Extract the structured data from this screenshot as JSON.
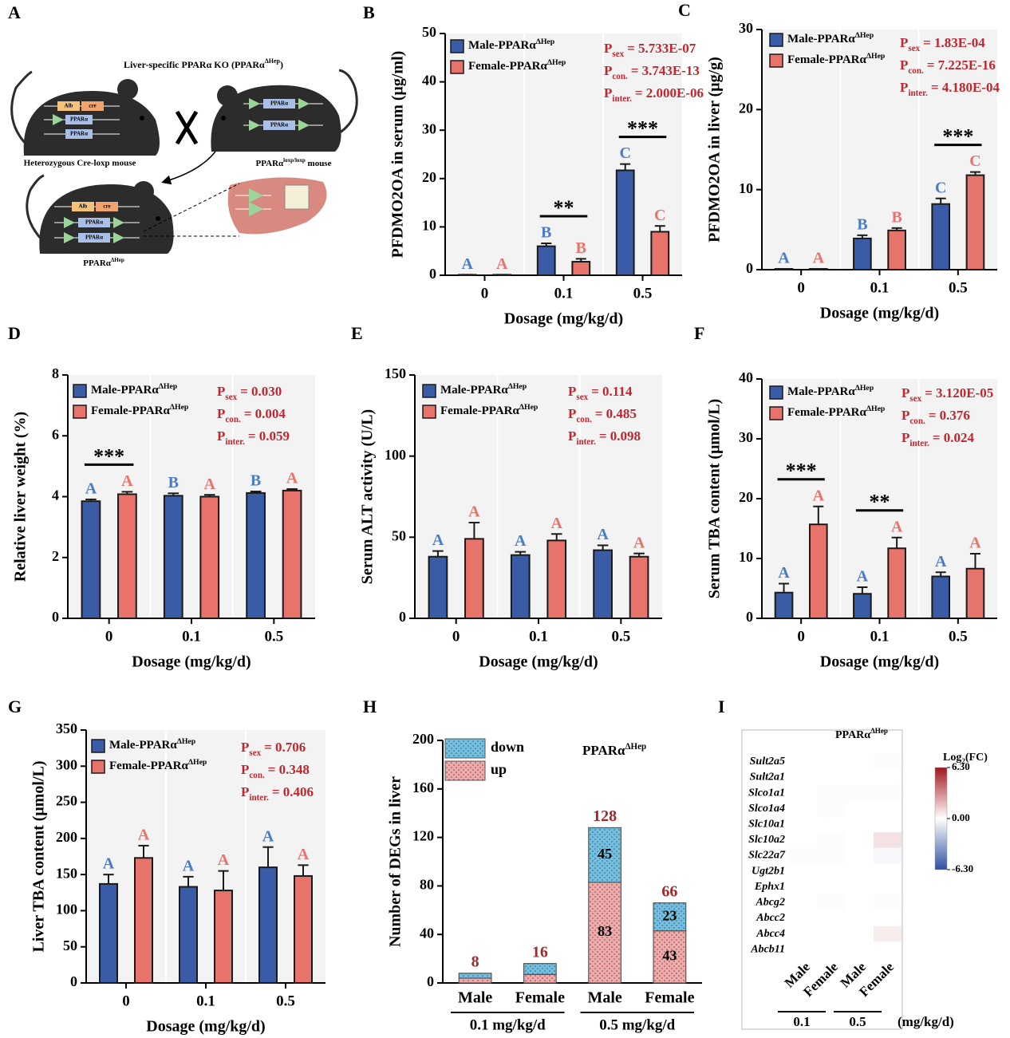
{
  "diagram": {
    "panel_label": "A",
    "title": "Liver-specific PPARα KO (PPARα",
    "title_sup": "ΔHep",
    "title_end": ")",
    "mouse1": "Heterozygous Cre-loxp mouse",
    "mouse2": "PPARα",
    "mouse2_sup": "loxp/loxp",
    "mouse2_end": " mouse",
    "mouse3": "PPARα",
    "mouse3_sup": "ΔHep",
    "genes": {
      "alb": "Alb",
      "cre": "cre",
      "loxp": "loxp",
      "ppara": "PPARα"
    }
  },
  "chart_data": [
    {
      "type": "bar",
      "panel_label": "B",
      "ylabel": "PFDMO2OA in serum (μg/ml)",
      "xlabel": "Dosage (mg/kg/d)",
      "categories": [
        "0",
        "0.1",
        "0.5"
      ],
      "series": [
        {
          "name": "Male-PPARα",
          "name_sup": "ΔHep",
          "color": "#3a5ca6",
          "letter_color": "#4a7cc6",
          "values": [
            0.1,
            6,
            21.7
          ],
          "errors": [
            0,
            0.6,
            1.3
          ],
          "letters": [
            "A",
            "B",
            "C"
          ]
        },
        {
          "name": "Female-PPARα",
          "name_sup": "ΔHep",
          "color": "#e7736b",
          "letter_color": "#e8736b",
          "values": [
            0.1,
            2.8,
            9
          ],
          "errors": [
            0,
            0.6,
            1.2
          ],
          "letters": [
            "A",
            "B",
            "C"
          ]
        }
      ],
      "p_values": [
        {
          "symbol": "P",
          "sub": "sex",
          "text": "= 5.733E-07"
        },
        {
          "symbol": "P",
          "sub": "con.",
          "text": "= 3.743E-13"
        },
        {
          "symbol": "P",
          "sub": "inter.",
          "text": "= 2.000E-06"
        }
      ],
      "p_color": "#c0262d",
      "significance": [
        null,
        "**",
        "***"
      ],
      "ylim": [
        0,
        50
      ],
      "yticks": [
        0,
        10,
        20,
        30,
        40,
        50
      ]
    },
    {
      "type": "bar",
      "panel_label": "C",
      "ylabel": "PFDMO2OA in liver (μg/g)",
      "xlabel": "Dosage (mg/kg/d)",
      "categories": [
        "0",
        "0.1",
        "0.5"
      ],
      "series": [
        {
          "name": "Male-PPARα",
          "name_sup": "ΔHep",
          "color": "#3a5ca6",
          "letter_color": "#4a7cc6",
          "values": [
            0.1,
            3.9,
            8.2
          ],
          "errors": [
            0,
            0.4,
            0.7
          ],
          "letters": [
            "A",
            "B",
            "C"
          ]
        },
        {
          "name": "Female-PPARα",
          "name_sup": "ΔHep",
          "color": "#e7736b",
          "letter_color": "#e8736b",
          "values": [
            0.1,
            4.9,
            11.8
          ],
          "errors": [
            0,
            0.3,
            0.4
          ],
          "letters": [
            "A",
            "B",
            "C"
          ]
        }
      ],
      "p_values": [
        {
          "symbol": "P",
          "sub": "sex",
          "text": "= 1.83E-04"
        },
        {
          "symbol": "P",
          "sub": "con.",
          "text": "= 7.225E-16"
        },
        {
          "symbol": "P",
          "sub": "inter.",
          "text": "= 4.180E-04"
        }
      ],
      "p_color": "#c0262d",
      "significance": [
        null,
        null,
        "***"
      ],
      "ylim": [
        0,
        30
      ],
      "yticks": [
        0,
        10,
        20,
        30
      ]
    },
    {
      "type": "bar",
      "panel_label": "D",
      "ylabel": "Relative liver weight (%)",
      "xlabel": "Dosage (mg/kg/d)",
      "categories": [
        "0",
        "0.1",
        "0.5"
      ],
      "series": [
        {
          "name": "Male-PPARα",
          "name_sup": "ΔHep",
          "color": "#3a5ca6",
          "letter_color": "#4a7cc6",
          "values": [
            3.85,
            4.03,
            4.12
          ],
          "errors": [
            0.06,
            0.08,
            0.05
          ],
          "letters": [
            "A",
            "B",
            "B"
          ]
        },
        {
          "name": "Female-PPARα",
          "name_sup": "ΔHep",
          "color": "#e7736b",
          "letter_color": "#e8736b",
          "values": [
            4.08,
            4.0,
            4.2
          ],
          "errors": [
            0.08,
            0.06,
            0.05
          ],
          "letters": [
            "A",
            "A",
            "A"
          ]
        }
      ],
      "p_values": [
        {
          "symbol": "P",
          "sub": "sex",
          "text": "= 0.030"
        },
        {
          "symbol": "P",
          "sub": "con.",
          "text": "= 0.004"
        },
        {
          "symbol": "P",
          "sub": "inter.",
          "text": "= 0.059"
        }
      ],
      "p_color": "#c0262d",
      "significance": [
        "***",
        null,
        null
      ],
      "ylim": [
        0,
        8
      ],
      "yticks": [
        0,
        2,
        4,
        6,
        8
      ]
    },
    {
      "type": "bar",
      "panel_label": "E",
      "ylabel": "Serum ALT activity (U/L)",
      "xlabel": "Dosage (mg/kg/d)",
      "categories": [
        "0",
        "0.1",
        "0.5"
      ],
      "series": [
        {
          "name": "Male-PPARα",
          "name_sup": "ΔHep",
          "color": "#3a5ca6",
          "letter_color": "#4a7cc6",
          "values": [
            38,
            39,
            42
          ],
          "errors": [
            3.5,
            2,
            3
          ],
          "letters": [
            "A",
            "A",
            "A"
          ]
        },
        {
          "name": "Female-PPARα",
          "name_sup": "ΔHep",
          "color": "#e7736b",
          "letter_color": "#e8736b",
          "values": [
            49,
            48,
            38
          ],
          "errors": [
            10,
            4,
            2
          ],
          "letters": [
            "A",
            "A",
            "A"
          ]
        }
      ],
      "p_values": [
        {
          "symbol": "P",
          "sub": "sex",
          "text": "= 0.114"
        },
        {
          "symbol": "P",
          "sub": "con.",
          "text": "= 0.485"
        },
        {
          "symbol": "P",
          "sub": "inter.",
          "text": "= 0.098"
        }
      ],
      "p_color": "#c0262d",
      "significance": [
        null,
        null,
        null
      ],
      "ylim": [
        0,
        150
      ],
      "yticks": [
        0,
        50,
        100,
        150
      ]
    },
    {
      "type": "bar",
      "panel_label": "F",
      "ylabel": "Serum TBA content (μmol/L)",
      "xlabel": "Dosage (mg/kg/d)",
      "categories": [
        "0",
        "0.1",
        "0.5"
      ],
      "series": [
        {
          "name": "Male-PPARα",
          "name_sup": "ΔHep",
          "color": "#3a5ca6",
          "letter_color": "#4a7cc6",
          "values": [
            4.3,
            4.1,
            7.0
          ],
          "errors": [
            1.5,
            1.1,
            0.7
          ],
          "letters": [
            "A",
            "A",
            "A"
          ]
        },
        {
          "name": "Female-PPARα",
          "name_sup": "ΔHep",
          "color": "#e7736b",
          "letter_color": "#e8736b",
          "values": [
            15.7,
            11.7,
            8.3
          ],
          "errors": [
            3,
            1.8,
            2.5
          ],
          "letters": [
            "A",
            "A",
            "A"
          ]
        }
      ],
      "p_values": [
        {
          "symbol": "P",
          "sub": "sex",
          "text": "= 3.120E-05"
        },
        {
          "symbol": "P",
          "sub": "con.",
          "text": "= 0.376"
        },
        {
          "symbol": "P",
          "sub": "inter.",
          "text": "= 0.024"
        }
      ],
      "p_color": "#c0262d",
      "significance": [
        "***",
        "**",
        null
      ],
      "ylim": [
        0,
        40
      ],
      "yticks": [
        0,
        10,
        20,
        30,
        40
      ]
    },
    {
      "type": "bar",
      "panel_label": "G",
      "ylabel": "Liver TBA content (μmol/L)",
      "xlabel": "Dosage (mg/kg/d)",
      "categories": [
        "0",
        "0.1",
        "0.5"
      ],
      "series": [
        {
          "name": "Male-PPARα",
          "name_sup": "ΔHep",
          "color": "#3a5ca6",
          "letter_color": "#4a7cc6",
          "values": [
            137,
            133,
            160
          ],
          "errors": [
            13,
            14,
            28
          ],
          "letters": [
            "A",
            "A",
            "A"
          ]
        },
        {
          "name": "Female-PPARα",
          "name_sup": "ΔHep",
          "color": "#e7736b",
          "letter_color": "#e8736b",
          "values": [
            173,
            128,
            148
          ],
          "errors": [
            17,
            27,
            15
          ],
          "letters": [
            "A",
            "A",
            "A"
          ]
        }
      ],
      "p_values": [
        {
          "symbol": "P",
          "sub": "sex",
          "text": "= 0.706"
        },
        {
          "symbol": "P",
          "sub": "con.",
          "text": "= 0.348"
        },
        {
          "symbol": "P",
          "sub": "inter.",
          "text": "= 0.406"
        }
      ],
      "p_color": "#c0262d",
      "significance": [
        null,
        null,
        null
      ],
      "ylim": [
        0,
        350
      ],
      "yticks": [
        0,
        50,
        100,
        150,
        200,
        250,
        300,
        350
      ]
    },
    {
      "type": "stacked_bar",
      "panel_label": "H",
      "ylabel": "Number of DEGs in liver",
      "categories": [
        "Male",
        "Female",
        "Male",
        "Female"
      ],
      "groups": [
        "0.1 mg/kg/d",
        "0.5 mg/kg/d"
      ],
      "annotation": "PPARα",
      "annotation_sup": "ΔHep",
      "series": [
        {
          "name": "down",
          "color": "#6fc0e2",
          "values": [
            4,
            9,
            45,
            23
          ]
        },
        {
          "name": "up",
          "color": "#f3a9a9",
          "values": [
            4,
            7,
            83,
            43
          ]
        }
      ],
      "totals": [
        8,
        16,
        128,
        66
      ],
      "totals_color": "#9c2a2a",
      "ylim": [
        0,
        200
      ],
      "yticks": [
        0,
        40,
        80,
        120,
        160,
        200
      ]
    },
    {
      "type": "heatmap",
      "panel_label": "I",
      "title": "PPARα",
      "title_sup": "ΔHep",
      "rows": [
        "Sult2a5",
        "Sult2a1",
        "Slco1a1",
        "Slco1a4",
        "Slc10a1",
        "Slc10a2",
        "Slc22a7",
        "Ugt2b1",
        "Ephx1",
        "Abcg2",
        "Abcc2",
        "Abcc4",
        "Abcb11"
      ],
      "columns": [
        "Male",
        "Female",
        "Male",
        "Female"
      ],
      "column_groups": [
        "0.1",
        "0.5"
      ],
      "unit": "(mg/kg/d)",
      "values": [
        [
          0,
          0,
          0,
          0.1
        ],
        [
          0,
          0,
          0,
          0
        ],
        [
          0,
          0.1,
          0.1,
          0.1
        ],
        [
          0,
          0.1,
          0,
          0
        ],
        [
          0,
          0,
          0,
          0
        ],
        [
          0,
          0.1,
          0,
          0.8
        ],
        [
          0.1,
          0.1,
          0,
          -0.3
        ],
        [
          0,
          0,
          0,
          0
        ],
        [
          0,
          0,
          0,
          0
        ],
        [
          0,
          0.1,
          0,
          0.1
        ],
        [
          0,
          0,
          0,
          0
        ],
        [
          0,
          0,
          0,
          0.5
        ],
        [
          0,
          0,
          0,
          0
        ]
      ],
      "zlim": [
        -6.3,
        6.3
      ],
      "colorbar_label": "Log",
      "colorbar_label_sub": "2",
      "colorbar_label_end": "(FC)",
      "colorbar_ticks": [
        {
          "value": 6.3,
          "label": "6.30"
        },
        {
          "value": 0,
          "label": "0.00"
        },
        {
          "value": -6.3,
          "label": "-6.30"
        }
      ]
    }
  ]
}
